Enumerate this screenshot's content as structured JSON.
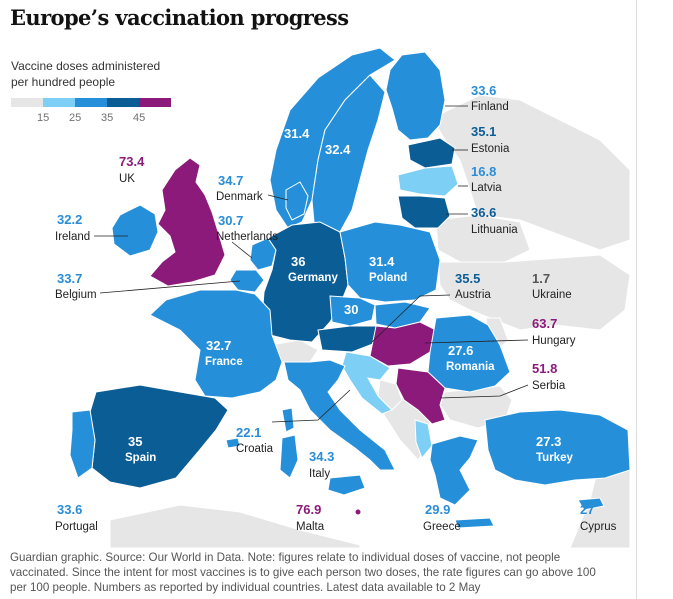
{
  "title": "Europe’s vaccination progress",
  "legend": {
    "title_line1": "Vaccine doses administered",
    "title_line2": "per hundred people",
    "ticks": [
      "15",
      "25",
      "35",
      "45"
    ],
    "colors": [
      "#e6e6e6",
      "#7dcff5",
      "#2590d9",
      "#0b5d96",
      "#8b1a7a"
    ]
  },
  "countries": {
    "uk": {
      "name": "UK",
      "value": "73.4"
    },
    "ireland": {
      "name": "Ireland",
      "value": "32.2"
    },
    "belgium": {
      "name": "Belgium",
      "value": "33.7"
    },
    "netherlands": {
      "name": "Netherlands",
      "value": "30.7"
    },
    "denmark": {
      "name": "Denmark",
      "value": "34.7"
    },
    "norway": {
      "value": "31.4"
    },
    "sweden": {
      "value": "32.4"
    },
    "finland": {
      "name": "Finland",
      "value": "33.6"
    },
    "estonia": {
      "name": "Estonia",
      "value": "35.1"
    },
    "latvia": {
      "name": "Latvia",
      "value": "16.8"
    },
    "lithuania": {
      "name": "Lithuania",
      "value": "36.6"
    },
    "germany": {
      "name": "Germany",
      "value": "36"
    },
    "poland": {
      "name": "Poland",
      "value": "31.4"
    },
    "czechia": {
      "value": "30"
    },
    "austria": {
      "name": "Austria",
      "value": "35.5"
    },
    "ukraine": {
      "name": "Ukraine",
      "value": "1.7"
    },
    "hungary": {
      "name": "Hungary",
      "value": "63.7"
    },
    "romania": {
      "name": "Romania",
      "value": "27.6"
    },
    "serbia": {
      "name": "Serbia",
      "value": "51.8"
    },
    "france": {
      "name": "France",
      "value": "32.7"
    },
    "spain": {
      "name": "Spain",
      "value": "35"
    },
    "portugal": {
      "name": "Portugal",
      "value": "33.6"
    },
    "croatia": {
      "name": "Croatia",
      "value": "22.1"
    },
    "italy": {
      "name": "Italy",
      "value": "34.3"
    },
    "malta": {
      "name": "Malta",
      "value": "76.9"
    },
    "greece": {
      "name": "Greece",
      "value": "29.9"
    },
    "turkey": {
      "name": "Turkey",
      "value": "27.3"
    },
    "cyprus": {
      "name": "Cyprus",
      "value": "27"
    }
  },
  "footer": {
    "line1": "Guardian graphic. Source: Our World in Data. Note: figures relate to individual doses of vaccine, not people",
    "line2": "vaccinated. Since the intent for most vaccines is to give each person two doses, the rate figures can go above 100",
    "line3": "per 100 people. Numbers as reported by individual countries. Latest data available to 2 May"
  }
}
